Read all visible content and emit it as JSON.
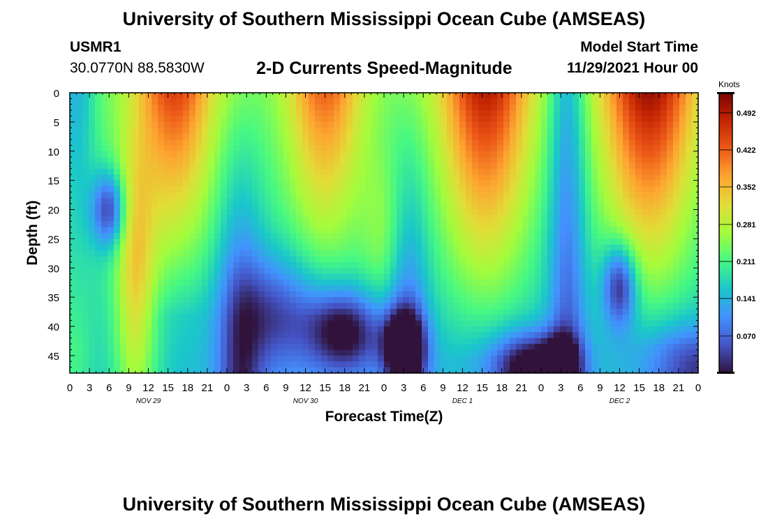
{
  "header": {
    "title": "University of Southern Mississippi Ocean Cube (AMSEAS)",
    "station": "USMR1",
    "coords": "30.0770N  88.5830W",
    "product": "2-D Currents Speed-Magnitude",
    "model_start_label": "Model Start Time",
    "model_start_value": "11/29/2021 Hour 00"
  },
  "footer": {
    "title": "University of Southern Mississippi Ocean Cube (AMSEAS)"
  },
  "chart_data": {
    "type": "heatmap",
    "title": "2-D Currents Speed-Magnitude",
    "xlabel": "Forecast Time(Z)",
    "ylabel": "Depth (ft)",
    "xlim": [
      0,
      96
    ],
    "ylim": [
      48,
      0
    ],
    "x_ticks": [
      0,
      3,
      6,
      9,
      12,
      15,
      18,
      21,
      24,
      27,
      30,
      33,
      36,
      39,
      42,
      45,
      48,
      51,
      54,
      57,
      60,
      63,
      66,
      69,
      72,
      75,
      78,
      81,
      84,
      87,
      90,
      93,
      96
    ],
    "x_tick_labels": [
      "0",
      "3",
      "6",
      "9",
      "12",
      "15",
      "18",
      "21",
      "0",
      "3",
      "6",
      "9",
      "12",
      "15",
      "18",
      "21",
      "0",
      "3",
      "6",
      "9",
      "12",
      "15",
      "18",
      "21",
      "0",
      "3",
      "6",
      "9",
      "12",
      "15",
      "18",
      "21",
      "0"
    ],
    "y_ticks": [
      0,
      5,
      10,
      15,
      20,
      25,
      30,
      35,
      40,
      45
    ],
    "y_tick_labels": [
      "0",
      "5",
      "10",
      "15",
      "20",
      "25",
      "30",
      "35",
      "40",
      "45"
    ],
    "day_labels": [
      {
        "label": "NOV 29",
        "hour": 12
      },
      {
        "label": "NOV 30",
        "hour": 36
      },
      {
        "label": "DEC 1",
        "hour": 60
      },
      {
        "label": "DEC 2",
        "hour": 84
      }
    ],
    "colorbar": {
      "label": "Knots",
      "vmin": 0.0,
      "vmax": 0.53,
      "ticks": [
        0.492,
        0.422,
        0.352,
        0.281,
        0.211,
        0.141,
        0.07
      ],
      "tick_labels": [
        "0.492",
        "0.422",
        "0.352",
        "0.281",
        "0.211",
        "0.141",
        "0.070"
      ]
    },
    "field": {
      "units": "knots",
      "depth_levels_ft": [
        0,
        48
      ],
      "surface_maxima": [
        {
          "hour": 16,
          "value": 0.44
        },
        {
          "hour": 40,
          "value": 0.4
        },
        {
          "hour": 63,
          "value": 0.48
        },
        {
          "hour": 88,
          "value": 0.51
        }
      ],
      "deep_minima": [
        {
          "hour": 6,
          "depth": 20,
          "value": 0.04
        },
        {
          "hour": 31,
          "depth": 37,
          "value": 0.04
        },
        {
          "hour": 42,
          "depth": 41,
          "value": 0.02
        },
        {
          "hour": 51,
          "depth": 43,
          "value": 0.01
        },
        {
          "hour": 70,
          "depth": 47,
          "value": 0.01
        },
        {
          "hour": 75,
          "depth": 46,
          "value": 0.03
        },
        {
          "hour": 84,
          "depth": 33,
          "value": 0.02
        }
      ]
    }
  }
}
